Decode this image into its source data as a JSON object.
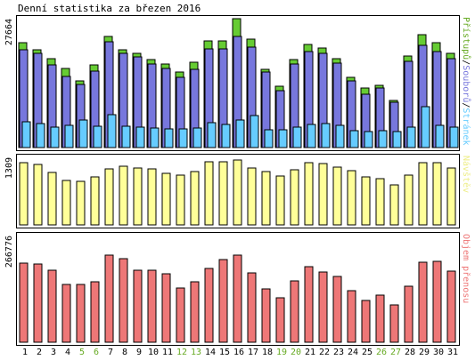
{
  "title": "Denní statistika za březen 2016",
  "colors": {
    "hits": "#66cc33",
    "files": "#7777dd",
    "pages": "#66ccff",
    "visits": "#ffff99",
    "kbytes": "#ee7777",
    "weekday_label": "#000000",
    "weekend_label": "#66aa22",
    "hits_label": "#66aa22",
    "files_label": "#7777dd",
    "pages_label": "#66ccff",
    "visits_label": "#eeee88",
    "kbytes_label": "#ee7777"
  },
  "chart_data": {
    "type": "bar",
    "title": "Denní statistika za březen 2016",
    "days": [
      "1",
      "2",
      "3",
      "4",
      "5",
      "6",
      "7",
      "8",
      "9",
      "10",
      "11",
      "12",
      "13",
      "14",
      "15",
      "16",
      "17",
      "18",
      "19",
      "20",
      "21",
      "22",
      "23",
      "24",
      "25",
      "26",
      "27",
      "28",
      "29",
      "30",
      "31"
    ],
    "weekend_days": [
      "5",
      "6",
      "12",
      "13",
      "19",
      "20",
      "26",
      "27"
    ],
    "panels": [
      {
        "id": "traffic",
        "ymax_label": "27664",
        "ymax": 27664,
        "series_labels": [
          "Stránek",
          "/",
          "Souborů",
          "/",
          "Přístupů"
        ],
        "series": [
          {
            "name": "Přístupů",
            "values": [
              22600,
              21000,
              19000,
              17000,
              14300,
              17700,
              23800,
              20900,
              20300,
              18800,
              17900,
              16200,
              18400,
              22900,
              22900,
              27664,
              23300,
              16800,
              13100,
              18900,
              22200,
              21300,
              19100,
              15100,
              12700,
              13400,
              10100,
              19700,
              24300,
              22500,
              20300
            ]
          },
          {
            "name": "Souborů",
            "values": [
              21000,
              20300,
              17800,
              15300,
              13600,
              16400,
              22700,
              20300,
              19400,
              17900,
              16900,
              15100,
              16800,
              21200,
              21200,
              23800,
              21600,
              16200,
              12300,
              18000,
              20600,
              20300,
              18100,
              14300,
              11500,
              12700,
              9800,
              18500,
              22000,
              20600,
              19100
            ]
          },
          {
            "name": "Stránek",
            "values": [
              5500,
              5100,
              4300,
              4800,
              5900,
              4500,
              7100,
              4600,
              4300,
              4200,
              4100,
              4000,
              4200,
              5300,
              4900,
              6000,
              6800,
              3800,
              3900,
              4300,
              4900,
              5200,
              4800,
              3700,
              3400,
              3700,
              3400,
              4300,
              8800,
              4700,
              4300
            ]
          }
        ]
      },
      {
        "id": "visits",
        "ymax_label": "1309",
        "ymax": 1309,
        "series_labels": [
          "Návštěv"
        ],
        "series": [
          {
            "name": "Návštěv",
            "values": [
              1260,
              1220,
              1065,
              905,
              870,
              965,
              1130,
              1185,
              1155,
              1135,
              1040,
              1000,
              1075,
              1270,
              1270,
              1309,
              1150,
              1080,
              995,
              1115,
              1260,
              1235,
              1160,
              1085,
              960,
              925,
              815,
              1000,
              1260,
              1250,
              1150
            ]
          }
        ]
      },
      {
        "id": "kbytes",
        "ymax_label": "266776",
        "ymax": 266776,
        "series_labels": [
          "Objem přenosu"
        ],
        "series": [
          {
            "name": "Objem přenosu",
            "values": [
              242000,
              239000,
              220000,
              178000,
              176000,
              186000,
              266776,
              257000,
              220000,
              220000,
              210000,
              167000,
              185000,
              226000,
              252000,
              266776,
              213000,
              162000,
              135000,
              189000,
              232000,
              215000,
              201000,
              159000,
              127000,
              143000,
              113000,
              172000,
              246000,
              249000,
              218000
            ]
          }
        ]
      }
    ]
  }
}
